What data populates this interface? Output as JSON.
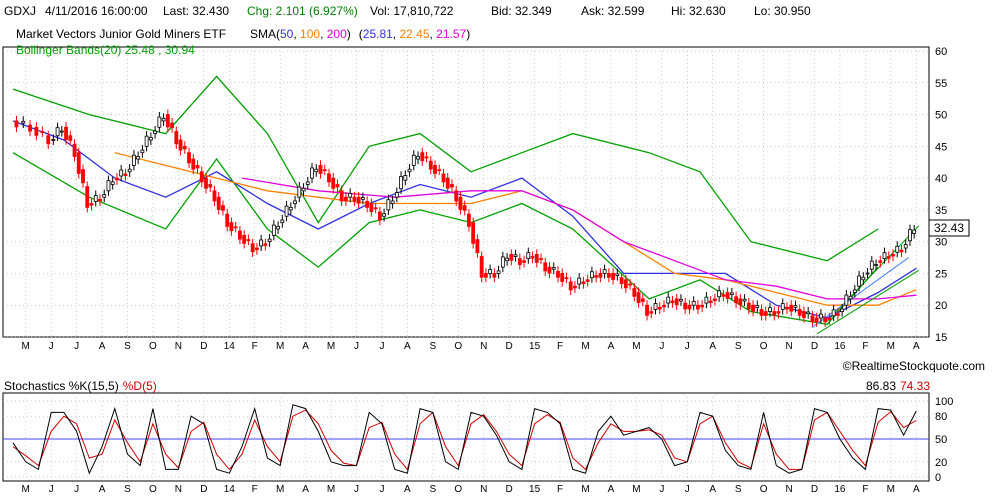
{
  "header": {
    "symbol": "GDXJ",
    "datetime": "4/11/2016 16:00:00",
    "last": "Last: 32.430",
    "chg": "Chg: 2.101 (6.927%)",
    "vol": "Vol: 17,810,722",
    "bid": "Bid: 32.349",
    "ask": "Ask: 32.599",
    "hi": "Hi: 32.630",
    "lo": "Lo: 30.950"
  },
  "legend": {
    "name": "Market Vectors Junior Gold Miners ETF",
    "sma_label": "SMA(",
    "sma_p1": "50",
    "sma_p2": "100",
    "sma_p3": "200",
    "sma_close": ")",
    "sma_values_open": "(",
    "sma_v1": "25.81",
    "sma_v2": "22.45",
    "sma_v3": "21.57",
    "sma_values_close": ")",
    "bollinger": "Bollinger Bands(20) 25.48 , 30.94",
    "last_price_tag": "32.43"
  },
  "watermark": "©RealtimeStockquote.com",
  "stoch": {
    "label_prefix": "Stochastics ",
    "k_label": "%K(15,5)",
    "d_label": "%D(5)",
    "k_value": "86.83",
    "d_value": "74.33"
  },
  "colors": {
    "up": "#000000",
    "down": "#ff0000",
    "bollinger": "#00a000",
    "sma50": "#3030e0",
    "sma100": "#ff8000",
    "sma200": "#e000e0",
    "stoch_k": "#000000",
    "stoch_d": "#d00000",
    "stoch_mid": "#4040ff",
    "grid": "#a0a0a0",
    "trend": "#00a000",
    "trend_blue": "#4080ff"
  },
  "chart_data": [
    {
      "type": "candlestick",
      "title": "GDXJ",
      "x_ticks": [
        "M",
        "J",
        "J",
        "A",
        "S",
        "O",
        "N",
        "D",
        "14",
        "F",
        "M",
        "A",
        "M",
        "J",
        "J",
        "A",
        "S",
        "O",
        "N",
        "D",
        "15",
        "F",
        "M",
        "A",
        "M",
        "J",
        "J",
        "A",
        "S",
        "O",
        "N",
        "D",
        "16",
        "F",
        "M",
        "A"
      ],
      "y_ticks": [
        15,
        20,
        25,
        30,
        35,
        40,
        45,
        50,
        55,
        60
      ],
      "ylim": [
        15,
        60
      ],
      "grid": true,
      "series": [
        {
          "name": "Bollinger upper",
          "key": "bb_upper",
          "x": [
            0,
            3,
            6,
            8,
            10,
            12,
            14,
            16,
            18,
            20,
            22,
            25,
            27,
            29,
            32,
            34
          ],
          "values": [
            54,
            50,
            47,
            56,
            47,
            33,
            45,
            47,
            41,
            44,
            47,
            44,
            41,
            30,
            27,
            32
          ]
        },
        {
          "name": "Bollinger lower",
          "key": "bb_lower",
          "x": [
            0,
            3,
            6,
            8,
            10,
            12,
            14,
            16,
            18,
            20,
            22,
            25,
            27,
            29,
            32,
            34
          ],
          "values": [
            44,
            37,
            32,
            43,
            32,
            26,
            33,
            35,
            33,
            36,
            32,
            21,
            24,
            19,
            17,
            26
          ]
        },
        {
          "name": "SMA 50",
          "key": "sma50",
          "x": [
            0,
            2,
            4,
            6,
            8,
            10,
            12,
            14,
            16,
            18,
            20,
            22,
            24,
            26,
            28,
            30,
            32,
            34,
            35.5
          ],
          "values": [
            49,
            46,
            40,
            37,
            41,
            36,
            32,
            36,
            39,
            37,
            40,
            34,
            25,
            25,
            25,
            20,
            18,
            22,
            25.81
          ]
        },
        {
          "name": "SMA 100",
          "key": "sma100",
          "x": [
            4,
            6,
            8,
            10,
            12,
            14,
            16,
            18,
            20,
            22,
            24,
            26,
            28,
            30,
            32,
            34,
            35.5
          ],
          "values": [
            44,
            42,
            40,
            38,
            37,
            36,
            36,
            36,
            38,
            35,
            30,
            25,
            24,
            22,
            20,
            20,
            22.45
          ]
        },
        {
          "name": "SMA 200",
          "key": "sma200",
          "x": [
            9,
            12,
            15,
            18,
            20,
            22,
            24,
            26,
            28,
            30,
            32,
            34,
            35.5
          ],
          "values": [
            40,
            38,
            37,
            38,
            38,
            35,
            30,
            27,
            24,
            23,
            21,
            21,
            21.57
          ]
        }
      ],
      "price_path": {
        "x": [
          0,
          0.8,
          1.5,
          2,
          2.5,
          3,
          3.5,
          4,
          4.5,
          5,
          5.5,
          6,
          6.5,
          7,
          7.5,
          8,
          8.5,
          9,
          9.5,
          10,
          10.5,
          11,
          11.5,
          12,
          12.5,
          13,
          13.5,
          14,
          14.5,
          15,
          15.5,
          16,
          16.5,
          17,
          17.5,
          18,
          18.5,
          19,
          19.5,
          20,
          20.5,
          21,
          21.5,
          22,
          22.5,
          23,
          23.5,
          24,
          24.5,
          25,
          25.5,
          26,
          26.5,
          27,
          27.5,
          28,
          28.5,
          29,
          29.5,
          30,
          30.5,
          31,
          31.5,
          32,
          32.5,
          33,
          33.5,
          34,
          34.5,
          35,
          35.5
        ],
        "values": [
          49,
          48,
          46,
          48,
          44,
          36,
          37,
          40,
          41,
          44,
          47,
          50,
          46,
          43,
          40,
          37,
          33,
          31,
          29,
          30,
          33,
          36,
          39,
          42,
          40,
          37,
          37,
          36,
          34,
          37,
          41,
          44,
          42,
          40,
          37,
          33,
          25,
          25,
          28,
          27,
          28,
          26,
          25,
          23,
          24,
          25,
          25,
          24,
          22,
          19,
          20,
          21,
          20,
          20,
          21,
          22,
          21,
          20,
          19,
          19,
          20,
          19,
          18,
          18,
          19,
          22,
          25,
          27,
          28,
          29,
          32.43
        ]
      }
    },
    {
      "type": "line",
      "title": "Stochastics %K(15,5) %D(5)",
      "y_ticks": [
        0,
        20,
        50,
        80,
        100
      ],
      "ylim": [
        0,
        100
      ],
      "grid": true,
      "series": [
        {
          "name": "%K(15,5)",
          "key": "k",
          "x": [
            0,
            0.5,
            1,
            1.5,
            2,
            2.5,
            3,
            3.5,
            4,
            4.5,
            5,
            5.5,
            6,
            6.5,
            7,
            7.5,
            8,
            8.5,
            9,
            9.5,
            10,
            10.5,
            11,
            11.5,
            12,
            12.5,
            13,
            13.5,
            14,
            14.5,
            15,
            15.5,
            16,
            16.5,
            17,
            17.5,
            18,
            18.5,
            19,
            19.5,
            20,
            20.5,
            21,
            21.5,
            22,
            22.5,
            23,
            23.5,
            24,
            24.5,
            25,
            25.5,
            26,
            26.5,
            27,
            27.5,
            28,
            28.5,
            29,
            29.5,
            30,
            30.5,
            31,
            31.5,
            32,
            32.5,
            33,
            33.5,
            34,
            34.5,
            35,
            35.5
          ],
          "values": [
            45,
            20,
            10,
            85,
            85,
            60,
            5,
            40,
            90,
            30,
            15,
            90,
            10,
            10,
            80,
            70,
            10,
            5,
            40,
            90,
            25,
            15,
            95,
            90,
            60,
            20,
            15,
            15,
            85,
            70,
            10,
            5,
            90,
            85,
            20,
            10,
            85,
            80,
            55,
            20,
            10,
            90,
            85,
            70,
            10,
            5,
            60,
            80,
            55,
            60,
            65,
            50,
            15,
            20,
            85,
            80,
            35,
            15,
            10,
            85,
            15,
            5,
            10,
            90,
            85,
            50,
            25,
            10,
            90,
            88,
            55,
            86.83
          ]
        },
        {
          "name": "%D(5)",
          "key": "d",
          "x": [
            0,
            0.5,
            1,
            1.5,
            2,
            2.5,
            3,
            3.5,
            4,
            4.5,
            5,
            5.5,
            6,
            6.5,
            7,
            7.5,
            8,
            8.5,
            9,
            9.5,
            10,
            10.5,
            11,
            11.5,
            12,
            12.5,
            13,
            13.5,
            14,
            14.5,
            15,
            15.5,
            16,
            16.5,
            17,
            17.5,
            18,
            18.5,
            19,
            19.5,
            20,
            20.5,
            21,
            21.5,
            22,
            22.5,
            23,
            23.5,
            24,
            24.5,
            25,
            25.5,
            26,
            26.5,
            27,
            27.5,
            28,
            28.5,
            29,
            29.5,
            30,
            30.5,
            31,
            31.5,
            32,
            32.5,
            33,
            33.5,
            34,
            34.5,
            35,
            35.5
          ],
          "values": [
            40,
            28,
            15,
            60,
            80,
            70,
            25,
            30,
            75,
            45,
            20,
            70,
            30,
            12,
            60,
            72,
            30,
            10,
            30,
            75,
            40,
            20,
            80,
            88,
            70,
            35,
            18,
            15,
            65,
            72,
            30,
            10,
            70,
            85,
            40,
            15,
            70,
            82,
            60,
            30,
            15,
            70,
            82,
            72,
            25,
            10,
            45,
            70,
            60,
            60,
            62,
            55,
            25,
            20,
            70,
            80,
            45,
            20,
            12,
            70,
            30,
            10,
            10,
            75,
            85,
            60,
            35,
            15,
            72,
            86,
            65,
            74.33
          ]
        }
      ]
    }
  ]
}
